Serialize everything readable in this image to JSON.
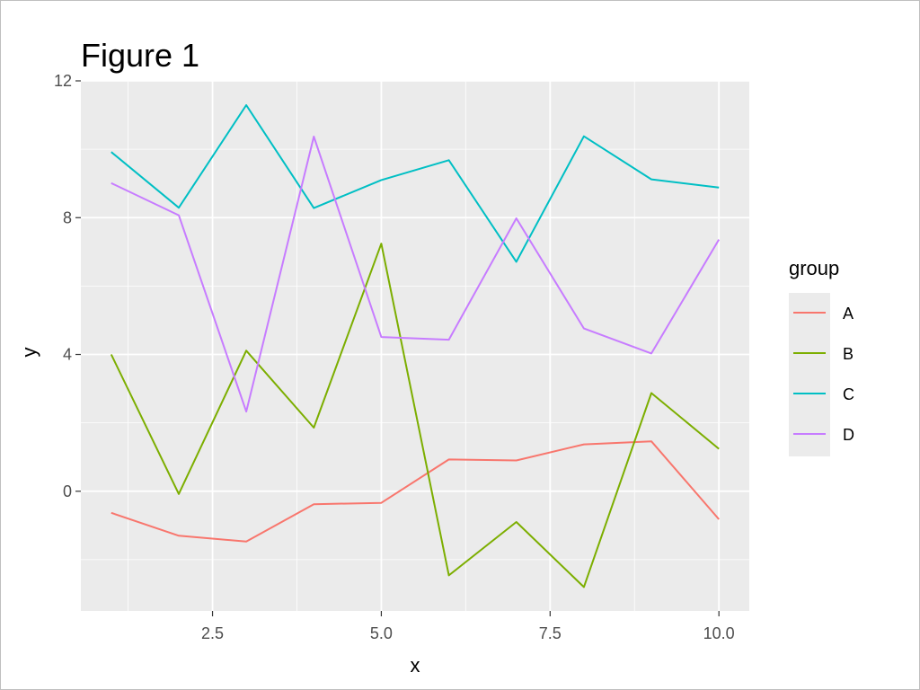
{
  "chart_data": {
    "type": "line",
    "title": "Figure 1",
    "xlabel": "x",
    "ylabel": "y",
    "xlim": [
      0.55,
      10.45
    ],
    "ylim": [
      -3.5,
      12.0
    ],
    "x_ticks": [
      2.5,
      5.0,
      7.5,
      10.0
    ],
    "x_tick_labels": [
      "2.5",
      "5.0",
      "7.5",
      "10.0"
    ],
    "y_ticks": [
      0,
      4,
      8,
      12
    ],
    "y_tick_labels": [
      "0",
      "4",
      "8",
      "12"
    ],
    "grid": true,
    "legend": {
      "title": "group",
      "placement": "right"
    },
    "x": [
      1,
      2,
      3,
      4,
      5,
      6,
      7,
      8,
      9,
      10
    ],
    "series": [
      {
        "name": "A",
        "color": "#F8766D",
        "values": [
          -0.63,
          -1.3,
          -1.47,
          -0.38,
          -0.34,
          0.93,
          0.9,
          1.37,
          1.46,
          -0.82
        ]
      },
      {
        "name": "B",
        "color": "#7CAE00",
        "values": [
          4.0,
          -0.08,
          4.11,
          1.86,
          7.24,
          -2.46,
          -0.9,
          -2.8,
          2.87,
          1.24
        ]
      },
      {
        "name": "C",
        "color": "#00BFC4",
        "values": [
          9.92,
          8.29,
          11.29,
          8.28,
          9.1,
          9.68,
          6.71,
          10.38,
          9.12,
          8.88
        ]
      },
      {
        "name": "D",
        "color": "#C77CFF",
        "values": [
          9.01,
          8.07,
          2.33,
          10.37,
          4.51,
          4.43,
          7.98,
          4.76,
          4.03,
          7.36
        ]
      }
    ]
  }
}
